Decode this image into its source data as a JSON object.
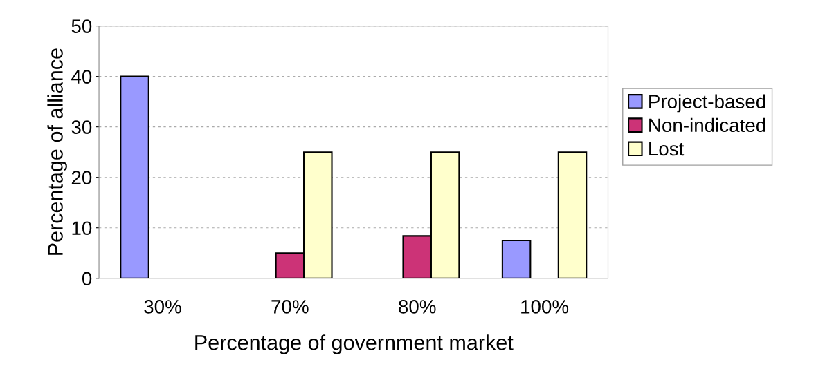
{
  "chart_data": {
    "type": "bar",
    "xlabel": "Percentage of government market",
    "ylabel": "Percentage of alliance",
    "categories": [
      "30%",
      "70%",
      "80%",
      "100%"
    ],
    "series": [
      {
        "name": "Project-based",
        "color": "#9999ff",
        "values": [
          40,
          null,
          null,
          7.5
        ]
      },
      {
        "name": "Non-indicated",
        "color": "#cc3377",
        "values": [
          null,
          5,
          8.4,
          null
        ]
      },
      {
        "name": "Lost",
        "color": "#ffffcc",
        "values": [
          null,
          25,
          25,
          25
        ]
      }
    ],
    "ylim": [
      0,
      50
    ],
    "yticks": [
      0,
      10,
      20,
      30,
      40,
      50
    ],
    "grid": "y",
    "legend": "right"
  }
}
